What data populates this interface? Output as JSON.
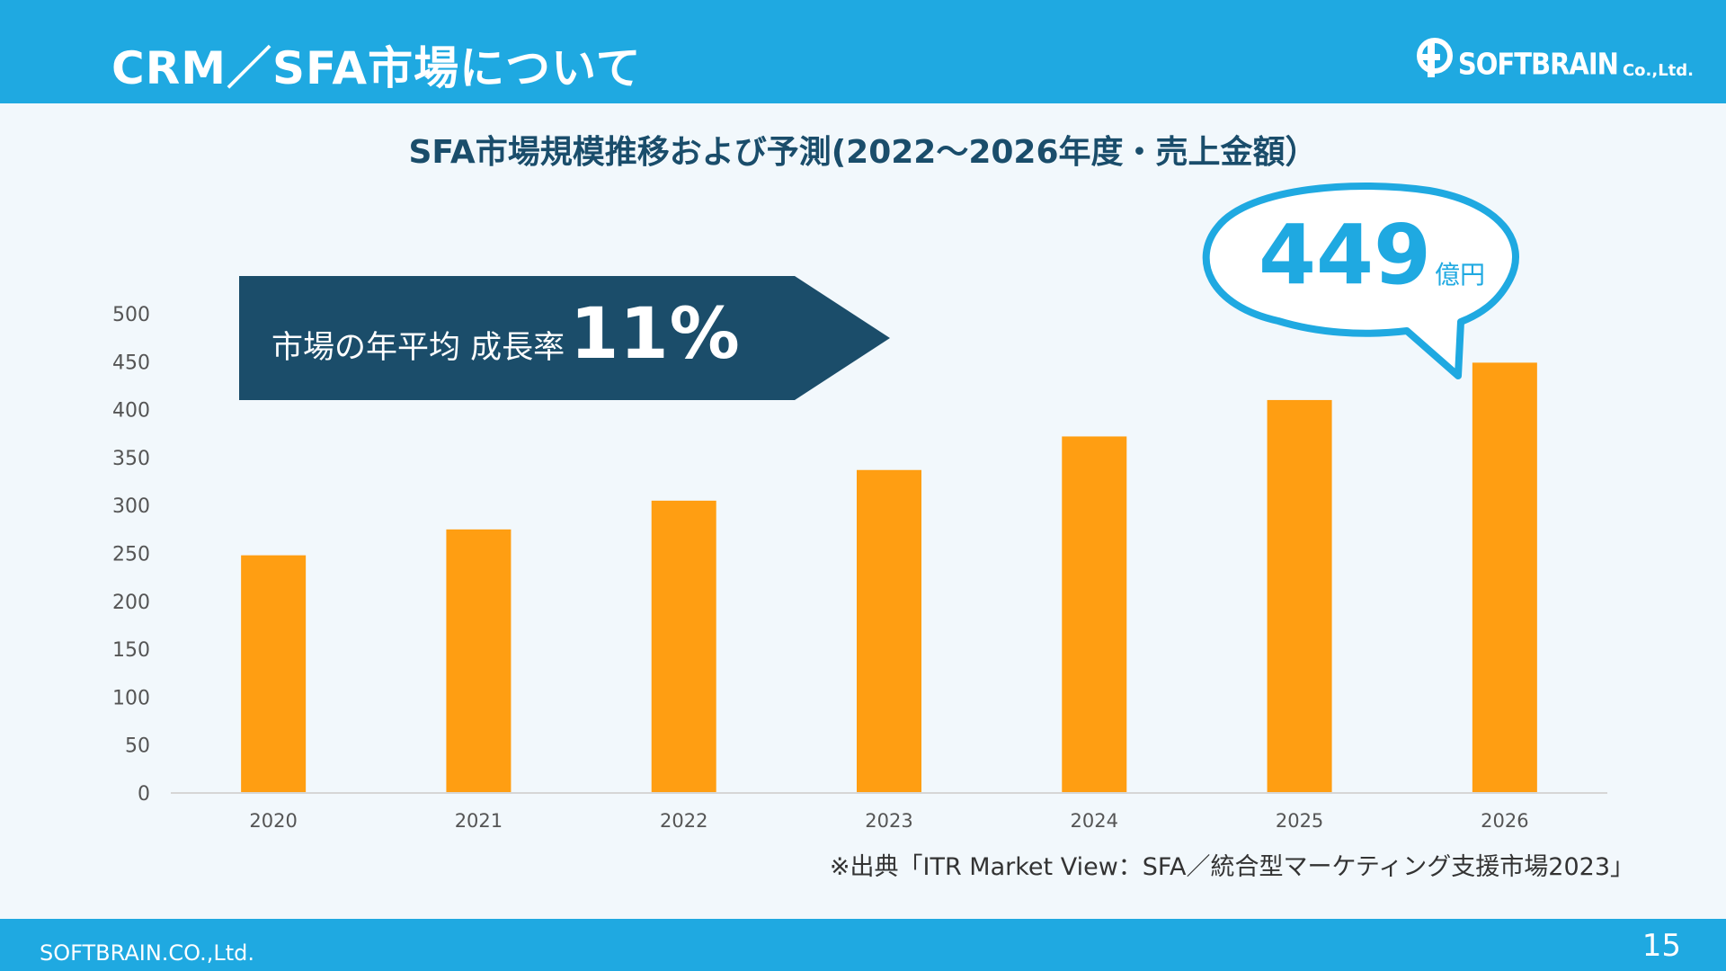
{
  "header": {
    "title": "CRM／SFA市場について",
    "logo_name": "SOFTBRAIN",
    "logo_suffix": "Co.,Ltd."
  },
  "chart_data": {
    "type": "bar",
    "title": "SFA市場規模推移および予測(2022～2026年度・売上金額）",
    "categories": [
      "2020",
      "2021",
      "2022",
      "2023",
      "2024",
      "2025",
      "2026"
    ],
    "values": [
      248,
      275,
      305,
      337,
      372,
      410,
      449
    ],
    "ylim": [
      0,
      500
    ],
    "yticks": [
      0,
      50,
      100,
      150,
      200,
      250,
      300,
      350,
      400,
      450,
      500
    ],
    "xlabel": "",
    "ylabel": "",
    "grid": false,
    "bar_color": "#ff9e12",
    "annotations": {
      "growth_label": "市場の年平均 成長率",
      "growth_value": "11%",
      "highlight_value": "449",
      "highlight_unit": "億円"
    }
  },
  "source_note": "※出典「ITR Market View：SFA／統合型マーケティング支援市場2023」",
  "footer": {
    "company": "SOFTBRAIN.CO.,Ltd.",
    "page_number": "15"
  },
  "colors": {
    "header": "#1fa9e1",
    "banner": "#1b4d6a",
    "bar": "#ff9e12",
    "accent": "#1fa9e1"
  }
}
